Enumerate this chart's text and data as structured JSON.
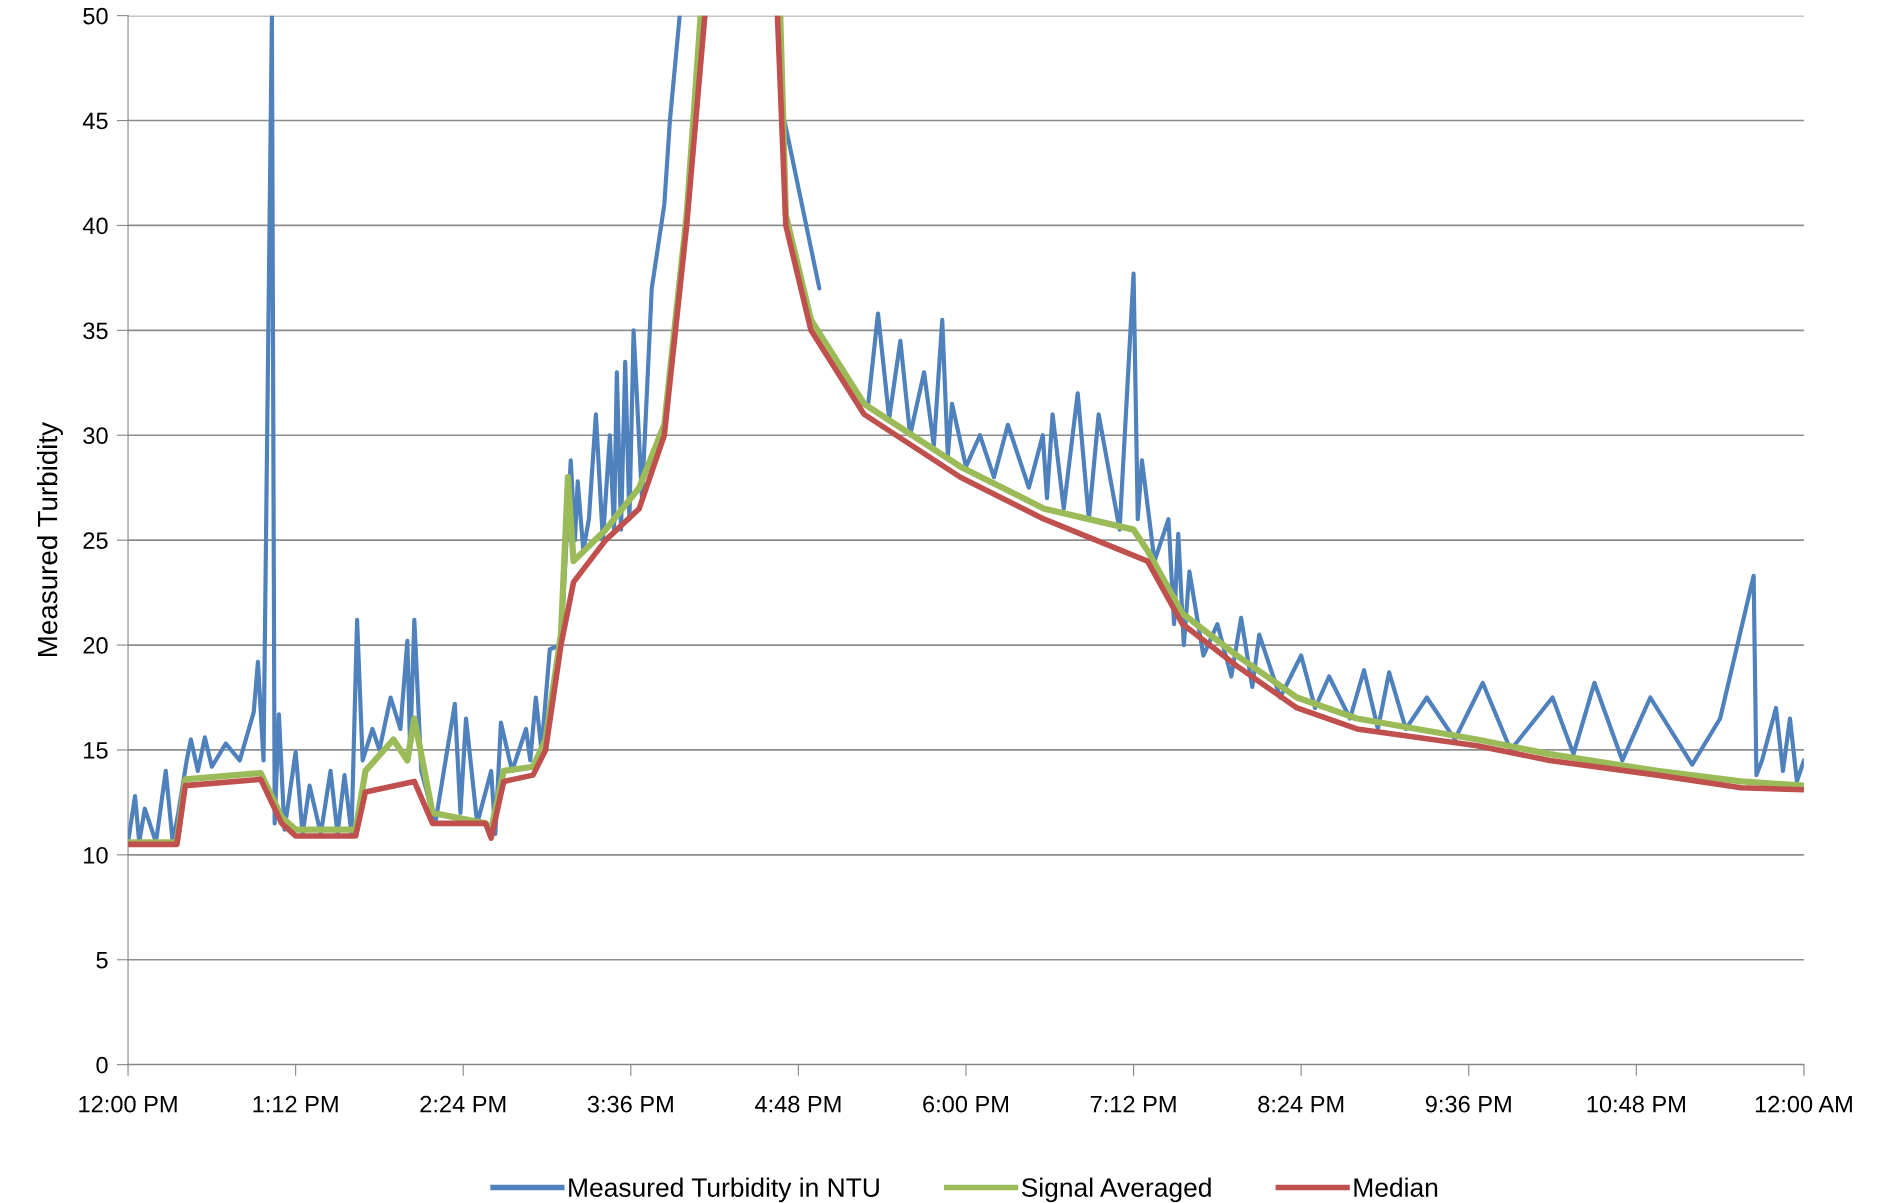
{
  "chart_data": {
    "type": "line",
    "ylabel": "Measured Turbidity",
    "xlim": [
      12,
      24
    ],
    "xticks": [
      {
        "value": 12,
        "label": "12:00 PM"
      },
      {
        "value": 13.2,
        "label": "1:12 PM"
      },
      {
        "value": 14.4,
        "label": "2:24 PM"
      },
      {
        "value": 15.6,
        "label": "3:36 PM"
      },
      {
        "value": 16.8,
        "label": "4:48 PM"
      },
      {
        "value": 18,
        "label": "6:00 PM"
      },
      {
        "value": 19.2,
        "label": "7:12 PM"
      },
      {
        "value": 20.4,
        "label": "8:24 PM"
      },
      {
        "value": 21.6,
        "label": "9:36 PM"
      },
      {
        "value": 22.8,
        "label": "10:48 PM"
      },
      {
        "value": 24,
        "label": "12:00 AM"
      }
    ],
    "ylim": [
      0,
      50
    ],
    "yticks": [
      0,
      5,
      10,
      15,
      20,
      25,
      30,
      35,
      40,
      45,
      50
    ],
    "grid": "y",
    "legend": "bottom",
    "marker": "none",
    "line_style": "solid",
    "series": [
      {
        "name": "Measured Turbidity in NTU",
        "color": "#4f81bd",
        "x": [
          12.0,
          12.05,
          12.08,
          12.12,
          12.2,
          12.27,
          12.32,
          12.36,
          12.42,
          12.45,
          12.5,
          12.55,
          12.6,
          12.7,
          12.8,
          12.9,
          12.93,
          12.97,
          13.03,
          13.05,
          13.08,
          13.12,
          13.2,
          13.25,
          13.3,
          13.38,
          13.45,
          13.5,
          13.55,
          13.6,
          13.64,
          13.68,
          13.75,
          13.8,
          13.88,
          13.95,
          14.0,
          14.02,
          14.05,
          14.1,
          14.2,
          14.34,
          14.38,
          14.42,
          14.5,
          14.6,
          14.63,
          14.67,
          14.75,
          14.85,
          14.88,
          14.92,
          14.96,
          15.02,
          15.1,
          15.17,
          15.2,
          15.22,
          15.26,
          15.3,
          15.35,
          15.4,
          15.45,
          15.48,
          15.5,
          15.53,
          15.56,
          15.59,
          15.62,
          15.68,
          15.75,
          15.84,
          15.88,
          15.95,
          16.3,
          16.66,
          16.7,
          16.95,
          17.1,
          17.3,
          17.37,
          17.45,
          17.53,
          17.6,
          17.7,
          17.77,
          17.83,
          17.87,
          17.9,
          18.0,
          18.1,
          18.2,
          18.3,
          18.45,
          18.55,
          18.58,
          18.62,
          18.7,
          18.8,
          18.88,
          18.95,
          19.1,
          19.2,
          19.23,
          19.26,
          19.35,
          19.45,
          19.49,
          19.52,
          19.56,
          19.6,
          19.7,
          19.8,
          19.9,
          19.97,
          20.05,
          20.1,
          20.25,
          20.4,
          20.5,
          20.6,
          20.75,
          20.85,
          20.95,
          21.03,
          21.15,
          21.3,
          21.5,
          21.7,
          21.9,
          22.2,
          22.35,
          22.5,
          22.7,
          22.9,
          23.2,
          23.4,
          23.64,
          23.66,
          23.7,
          23.8,
          23.85,
          23.9,
          23.95,
          24.0
        ],
        "values": [
          10.6,
          12.8,
          10.6,
          12.2,
          10.6,
          14.0,
          10.6,
          12.0,
          14.5,
          15.5,
          14.0,
          15.6,
          14.2,
          15.3,
          14.5,
          16.8,
          19.2,
          14.5,
          50,
          11.5,
          16.7,
          11.2,
          14.9,
          11.0,
          13.3,
          11.0,
          14.0,
          11.0,
          13.8,
          11.0,
          21.2,
          14.5,
          16.0,
          15.0,
          17.5,
          16.0,
          20.2,
          15.0,
          21.2,
          14.0,
          11.5,
          17.2,
          12.0,
          16.5,
          11.5,
          14.0,
          11.0,
          16.3,
          14.0,
          16.0,
          14.5,
          17.5,
          15.0,
          19.8,
          20.0,
          28.8,
          25.0,
          27.8,
          24.5,
          26.0,
          31.0,
          25.0,
          30.0,
          25.5,
          33.0,
          25.5,
          33.5,
          26.0,
          35.0,
          27.0,
          37.0,
          41.0,
          45.0,
          50,
          null,
          null,
          45,
          37.0,
          null,
          31.5,
          35.8,
          30.8,
          34.5,
          30.0,
          33.0,
          29.5,
          35.5,
          29.0,
          31.5,
          28.5,
          30.0,
          28.0,
          30.5,
          27.5,
          30.0,
          27.0,
          31.0,
          26.5,
          32.0,
          26.0,
          31.0,
          25.5,
          37.7,
          26.0,
          28.8,
          24.0,
          26.0,
          21.0,
          25.3,
          20.0,
          23.5,
          19.5,
          21.0,
          18.5,
          21.3,
          18.0,
          20.5,
          17.5,
          19.5,
          17.0,
          18.5,
          16.5,
          18.8,
          16.0,
          18.7,
          16.0,
          17.5,
          15.5,
          18.2,
          15.0,
          17.5,
          14.8,
          18.2,
          14.5,
          17.5,
          14.3,
          16.5,
          23.3,
          13.8,
          14.5,
          17.0,
          14.0,
          16.5,
          13.5,
          14.5
        ]
      },
      {
        "name": "Signal Averaged",
        "color": "#9bbb59",
        "x": [
          12.0,
          12.35,
          12.41,
          12.95,
          13.1,
          13.2,
          13.63,
          13.7,
          13.9,
          14.0,
          14.05,
          14.18,
          14.56,
          14.6,
          14.69,
          14.9,
          14.99,
          15.1,
          15.15,
          15.19,
          15.42,
          15.66,
          15.84,
          16.0,
          16.1,
          null,
          16.67,
          16.71,
          16.89,
          17.27,
          17.96,
          18.56,
          19.2,
          19.3,
          19.55,
          19.94,
          20.37,
          20.8,
          21.66,
          22.18,
          22.95,
          23.55,
          24.0
        ],
        "values": [
          10.6,
          10.6,
          13.6,
          13.9,
          11.8,
          11.2,
          11.2,
          14.0,
          15.5,
          14.5,
          16.5,
          12.0,
          11.5,
          11.2,
          14.0,
          14.2,
          15.5,
          20.5,
          28.0,
          24.0,
          25.5,
          27.5,
          30.5,
          40.5,
          50,
          null,
          50,
          40.5,
          35.5,
          31.5,
          28.5,
          26.5,
          25.5,
          24.5,
          21.5,
          19.5,
          17.5,
          16.5,
          15.5,
          14.8,
          14.0,
          13.5,
          13.3
        ]
      },
      {
        "name": "Median",
        "color": "#c0504d",
        "x": [
          12.0,
          12.35,
          12.41,
          12.95,
          13.1,
          13.2,
          13.63,
          13.7,
          14.05,
          14.18,
          14.56,
          14.6,
          14.69,
          14.9,
          14.99,
          15.1,
          15.19,
          15.42,
          15.66,
          15.84,
          16.0,
          16.13,
          null,
          16.65,
          16.71,
          16.89,
          17.27,
          17.96,
          18.56,
          19.3,
          19.55,
          19.94,
          20.37,
          20.8,
          21.66,
          22.18,
          22.95,
          23.55,
          24.0
        ],
        "values": [
          10.5,
          10.5,
          13.3,
          13.6,
          11.5,
          10.9,
          10.9,
          13.0,
          13.5,
          11.5,
          11.5,
          10.8,
          13.5,
          13.8,
          15.0,
          20.0,
          23.0,
          25.0,
          26.5,
          30.0,
          40.0,
          50,
          null,
          50,
          40.0,
          35.0,
          31.0,
          28.0,
          26.0,
          24.0,
          21.0,
          19.0,
          17.0,
          16.0,
          15.2,
          14.5,
          13.8,
          13.2,
          13.1
        ]
      }
    ]
  }
}
